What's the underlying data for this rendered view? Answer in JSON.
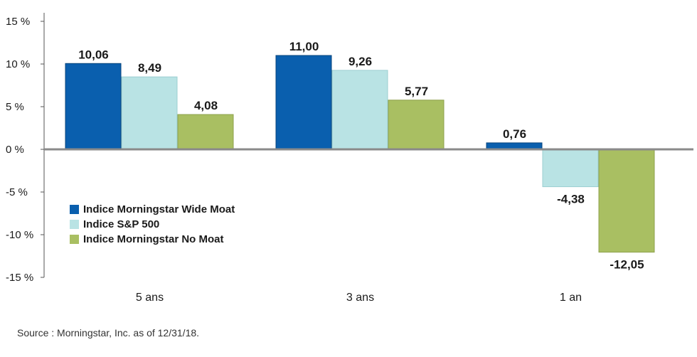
{
  "chart_data": {
    "type": "bar",
    "categories": [
      "5 ans",
      "3 ans",
      "1 an"
    ],
    "series": [
      {
        "name": "Indice Morningstar Wide Moat",
        "values": [
          10.06,
          11.0,
          0.76
        ],
        "labels": [
          "10,06",
          "11,00",
          "0,76"
        ],
        "color": "#0a5fae"
      },
      {
        "name": "Indice S&P 500",
        "values": [
          8.49,
          9.26,
          -4.38
        ],
        "labels": [
          "8,49",
          "9,26",
          "-4,38"
        ],
        "color": "#b9e3e4"
      },
      {
        "name": "Indice Morningstar No Moat",
        "values": [
          4.08,
          5.77,
          -12.05
        ],
        "labels": [
          "4,08",
          "5,77",
          "-12,05"
        ],
        "color": "#a9bf62"
      }
    ],
    "ylim": [
      -15,
      15
    ],
    "yticks": [
      15,
      10,
      5,
      0,
      -5,
      -10,
      -15
    ],
    "ytick_labels": [
      "15 %",
      "10 %",
      "5 %",
      "0 %",
      "-5 %",
      "-10 %",
      "-15 %"
    ],
    "legend_position": "center-left",
    "grid": false
  },
  "source": "Source : Morningstar, Inc. as of 12/31/18."
}
